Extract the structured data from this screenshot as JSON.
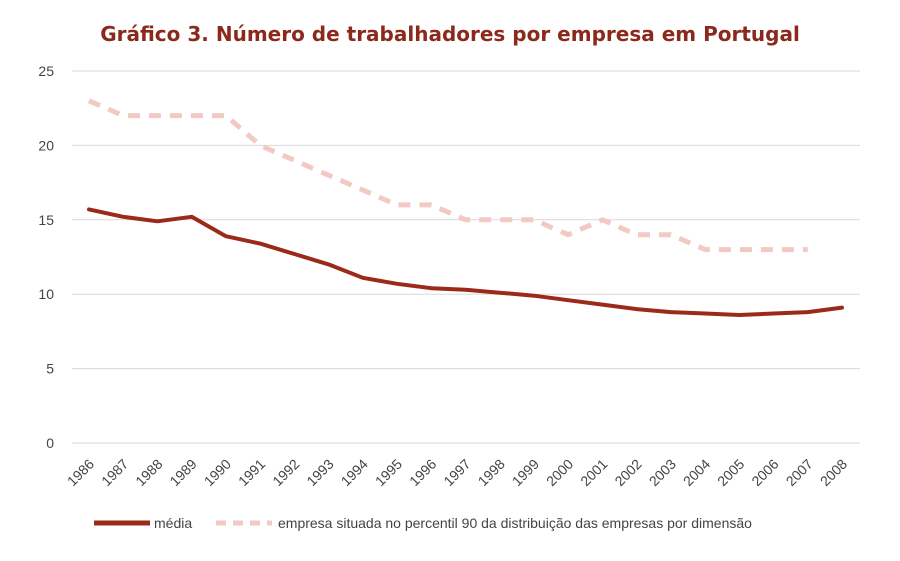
{
  "chart_data": {
    "type": "line",
    "title": "Gráfico 3. Número de trabalhadores por empresa em Portugal",
    "xlabel": "",
    "ylabel": "",
    "ylim": [
      0,
      25
    ],
    "yticks": [
      0,
      5,
      10,
      15,
      20,
      25
    ],
    "grid": true,
    "legend_position": "bottom",
    "categories": [
      "1986",
      "1987",
      "1988",
      "1989",
      "1990",
      "1991",
      "1992",
      "1993",
      "1994",
      "1995",
      "1996",
      "1997",
      "1998",
      "1999",
      "2000",
      "2001",
      "2002",
      "2003",
      "2004",
      "2005",
      "2006",
      "2007",
      "2008"
    ],
    "series": [
      {
        "name": "média",
        "style": "solid",
        "color": "#9b2a1a",
        "values": [
          15.7,
          15.2,
          14.9,
          15.2,
          13.9,
          13.4,
          12.7,
          12.0,
          11.1,
          10.7,
          10.4,
          10.3,
          10.1,
          9.9,
          9.6,
          9.3,
          9.0,
          8.8,
          8.7,
          8.6,
          8.7,
          8.8,
          9.1
        ]
      },
      {
        "name": "empresa situada no percentil 90 da distribuição das empresas por dimensão",
        "style": "dashed",
        "color": "#f2c9c3",
        "values": [
          23,
          22,
          22,
          22,
          22,
          20,
          19,
          18,
          17,
          16,
          16,
          15,
          15,
          15,
          14,
          15,
          14,
          14,
          13,
          13,
          13,
          13,
          null
        ]
      }
    ]
  }
}
